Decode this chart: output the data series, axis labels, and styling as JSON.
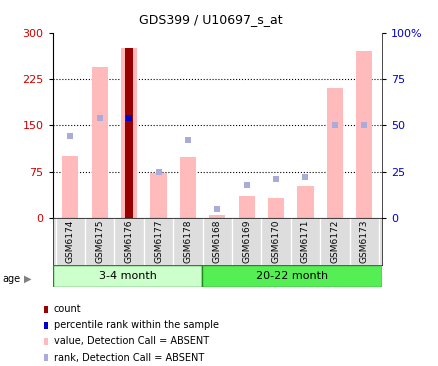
{
  "title": "GDS399 / U10697_s_at",
  "samples": [
    "GSM6174",
    "GSM6175",
    "GSM6176",
    "GSM6177",
    "GSM6178",
    "GSM6168",
    "GSM6169",
    "GSM6170",
    "GSM6171",
    "GSM6172",
    "GSM6173"
  ],
  "value_absent": [
    100,
    245,
    275,
    72,
    98,
    5,
    35,
    32,
    52,
    210,
    270
  ],
  "rank_absent_pct": [
    44,
    54,
    54,
    25,
    42,
    5,
    18,
    21,
    22,
    50,
    50
  ],
  "count_value": [
    null,
    null,
    275,
    null,
    null,
    null,
    null,
    null,
    null,
    null,
    null
  ],
  "percentile_rank_pct": [
    null,
    null,
    54,
    null,
    null,
    null,
    null,
    null,
    null,
    null,
    null
  ],
  "ylim_left": [
    0,
    300
  ],
  "ylim_right": [
    0,
    100
  ],
  "yticks_left": [
    0,
    75,
    150,
    225,
    300
  ],
  "yticks_right": [
    0,
    25,
    50,
    75,
    100
  ],
  "ytick_labels_right": [
    "0",
    "25",
    "50",
    "75",
    "100%"
  ],
  "bar_width": 0.55,
  "value_color": "#ffbbbb",
  "rank_color": "#aaaadd",
  "count_color": "#990000",
  "percentile_color": "#0000cc",
  "grid_color": "#000000",
  "tick_label_color_left": "#cc0000",
  "tick_label_color_right": "#0000cc",
  "group1_label": "3-4 month",
  "group2_label": "20-22 month",
  "group1_color": "#ccffcc",
  "group2_color": "#55ee55",
  "group1_count": 5,
  "group2_count": 6,
  "age_label": "age"
}
